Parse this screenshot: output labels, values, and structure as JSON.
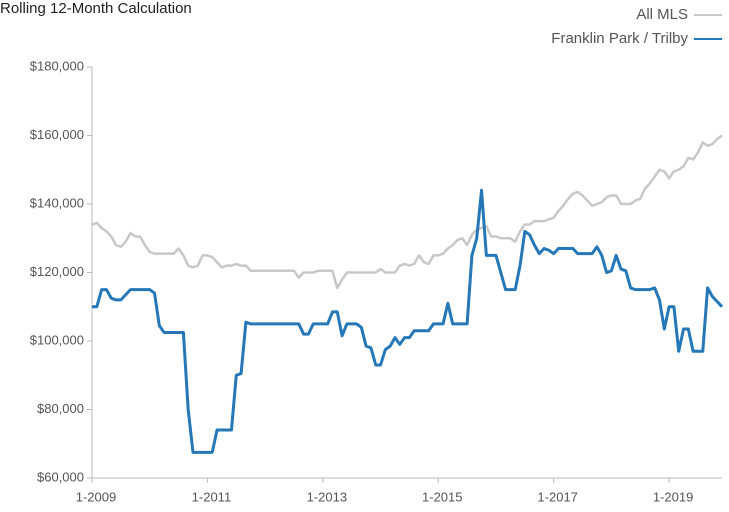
{
  "chart_data": {
    "type": "line",
    "title": "Rolling 12-Month Calculation",
    "x": [
      0,
      1,
      2,
      3,
      4,
      5,
      6,
      7,
      8,
      9,
      10,
      11,
      12,
      13,
      14,
      15,
      16,
      17,
      18,
      19,
      20,
      21,
      22,
      23,
      24,
      25,
      26,
      27,
      28,
      29,
      30,
      31,
      32,
      33,
      34,
      35,
      36,
      37,
      38,
      39,
      40,
      41,
      42,
      43,
      44,
      45,
      46,
      47,
      48,
      49,
      50,
      51,
      52,
      53,
      54,
      55,
      56,
      57,
      58,
      59,
      60,
      61,
      62,
      63,
      64,
      65,
      66,
      67,
      68,
      69,
      70,
      71,
      72,
      73,
      74,
      75,
      76,
      77,
      78,
      79,
      80,
      81,
      82,
      83,
      84,
      85,
      86,
      87,
      88,
      89,
      90,
      91,
      92,
      93,
      94,
      95,
      96,
      97,
      98,
      99,
      100,
      101,
      102,
      103,
      104,
      105,
      106,
      107,
      108,
      109,
      110,
      111,
      112,
      113,
      114,
      115,
      116,
      117,
      118,
      119,
      120,
      121,
      122,
      123,
      124,
      125,
      126,
      127,
      128,
      129,
      130,
      131
    ],
    "series": [
      {
        "name": "All MLS",
        "color": "#c8c8c8",
        "values": [
          134000,
          134500,
          133000,
          132000,
          130500,
          128000,
          127500,
          129000,
          131500,
          130500,
          130500,
          128000,
          126000,
          125500,
          125500,
          125500,
          125500,
          125500,
          127000,
          125000,
          122000,
          121500,
          122000,
          125000,
          125000,
          124500,
          123000,
          121500,
          122000,
          122000,
          122500,
          122000,
          122000,
          120500,
          120500,
          120500,
          120500,
          120500,
          120500,
          120500,
          120500,
          120500,
          120500,
          118500,
          120000,
          120000,
          120000,
          120500,
          120500,
          120500,
          120500,
          115500,
          118000,
          120000,
          120000,
          120000,
          120000,
          120000,
          120000,
          120000,
          121000,
          120000,
          120000,
          120000,
          122000,
          122500,
          122000,
          122500,
          125000,
          123000,
          122500,
          125000,
          125000,
          125500,
          127000,
          128000,
          129500,
          130000,
          128000,
          131000,
          132500,
          133000,
          133500,
          130500,
          130500,
          130000,
          130000,
          130000,
          129000,
          132000,
          134000,
          134000,
          135000,
          135000,
          135000,
          135500,
          136000,
          138000,
          139500,
          141500,
          143000,
          143500,
          142500,
          141000,
          139500,
          140000,
          140500,
          142000,
          142500,
          142500,
          140000,
          140000,
          140000,
          141000,
          141500,
          144500,
          146000,
          148000,
          150000,
          149500,
          147500,
          149500,
          150000,
          151000,
          153500,
          153000,
          155000,
          158000,
          157000,
          157500,
          159000,
          160000
        ]
      },
      {
        "name": "Franklin Park / Trilby",
        "color": "#2577b8",
        "values": [
          110000,
          110000,
          115000,
          115000,
          112500,
          112000,
          112000,
          113500,
          115000,
          115000,
          115000,
          115000,
          115000,
          114000,
          104500,
          102500,
          102500,
          102500,
          102500,
          102500,
          80000,
          67500,
          67500,
          67500,
          67500,
          67500,
          74000,
          74000,
          74000,
          74000,
          90000,
          90500,
          105500,
          105000,
          105000,
          105000,
          105000,
          105000,
          105000,
          105000,
          105000,
          105000,
          105000,
          105000,
          102000,
          102000,
          105000,
          105000,
          105000,
          105000,
          108500,
          108500,
          101500,
          105000,
          105000,
          105000,
          104000,
          98500,
          98000,
          93000,
          93000,
          97500,
          98500,
          101000,
          99000,
          101000,
          101000,
          103000,
          103000,
          103000,
          103000,
          105000,
          105000,
          105000,
          111000,
          105000,
          105000,
          105000,
          105000,
          125000,
          130000,
          144000,
          125000,
          125000,
          125000,
          120000,
          115000,
          115000,
          115000,
          122000,
          132000,
          131000,
          128000,
          125500,
          127000,
          126500,
          125500,
          127000,
          127000,
          127000,
          127000,
          125500,
          125500,
          125500,
          125500,
          127500,
          125000,
          120000,
          120500,
          125000,
          121000,
          120500,
          115500,
          115000,
          115000,
          115000,
          115000,
          115500,
          112000,
          103500,
          110000,
          110000,
          97000,
          103500,
          103500,
          97000,
          97000,
          97000,
          115500,
          113000,
          111500,
          110000
        ]
      }
    ],
    "xlim": [
      0,
      131
    ],
    "xticks": [
      {
        "value": 0,
        "label": "1-2009"
      },
      {
        "value": 24,
        "label": "1-2011"
      },
      {
        "value": 48,
        "label": "1-2013"
      },
      {
        "value": 72,
        "label": "1-2015"
      },
      {
        "value": 96,
        "label": "1-2017"
      },
      {
        "value": 120,
        "label": "1-2019"
      }
    ],
    "ylim": [
      60000,
      180000
    ],
    "yticks": [
      {
        "value": 60000,
        "label": "$60,000"
      },
      {
        "value": 80000,
        "label": "$80,000"
      },
      {
        "value": 100000,
        "label": "$100,000"
      },
      {
        "value": 120000,
        "label": "$120,000"
      },
      {
        "value": 140000,
        "label": "$140,000"
      },
      {
        "value": 160000,
        "label": "$160,000"
      },
      {
        "value": 180000,
        "label": "$180,000"
      }
    ],
    "legend": "top-right"
  }
}
